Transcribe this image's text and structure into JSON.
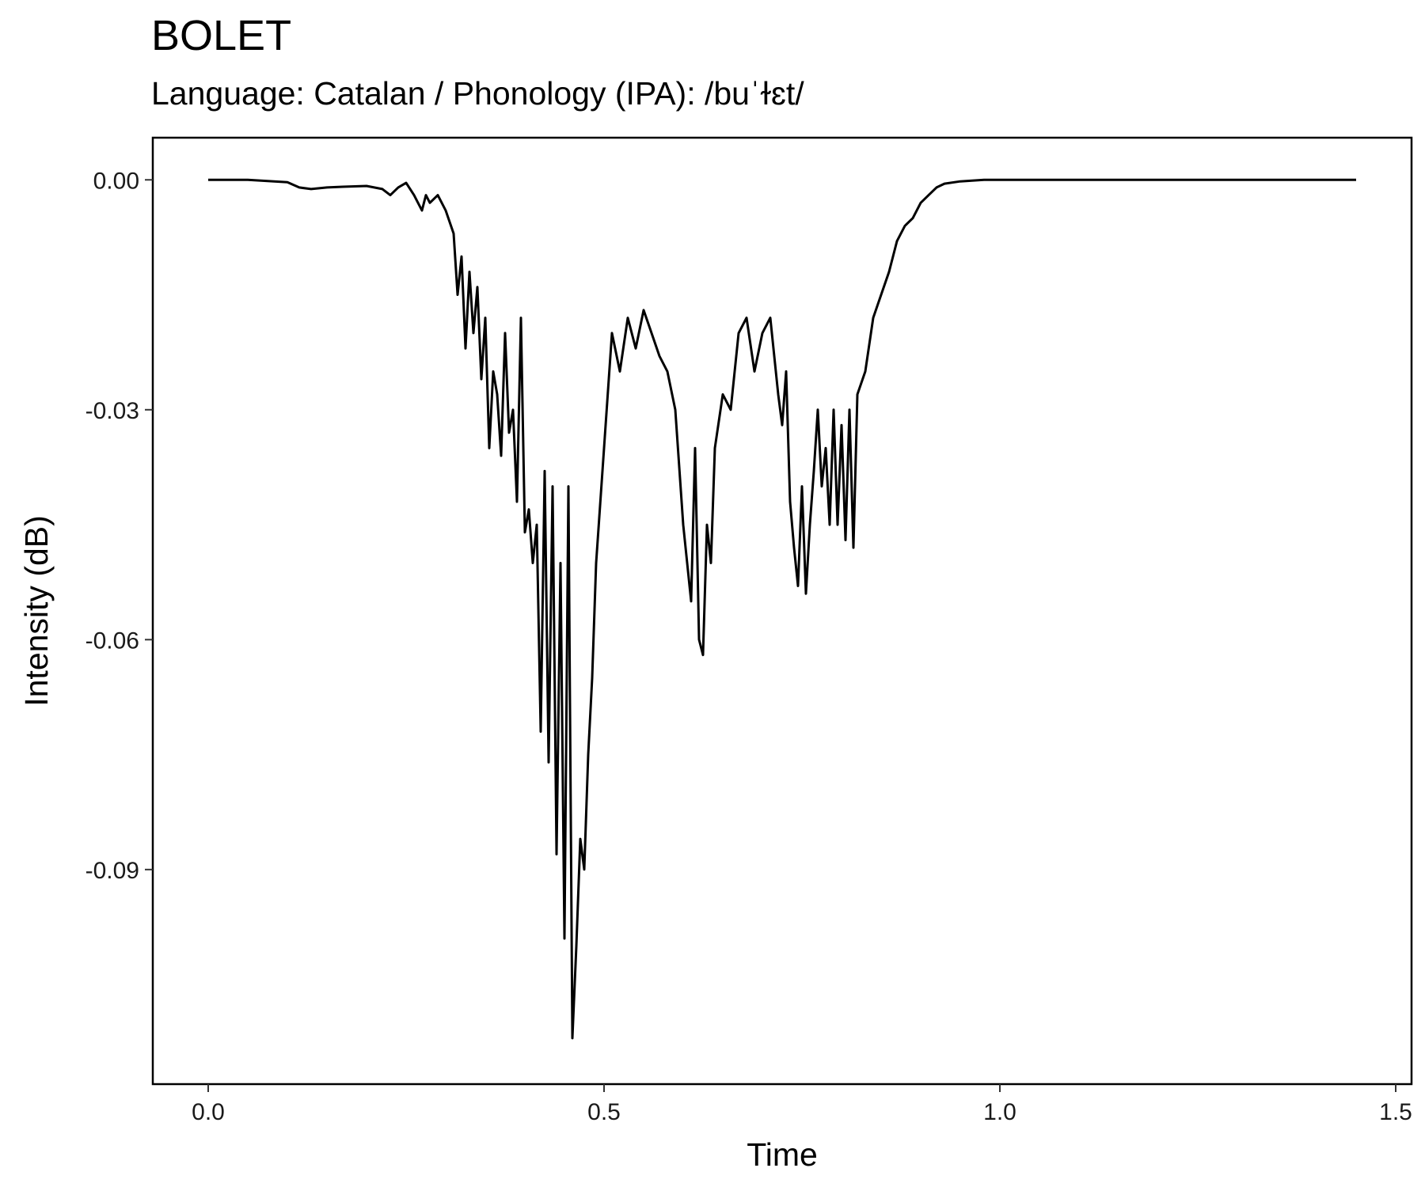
{
  "chart_data": {
    "type": "line",
    "title": "BOLET",
    "subtitle": "Language: Catalan / Phonology (IPA): /buˈɫɛt/",
    "xlabel": "Time",
    "ylabel": "Intensity (dB)",
    "xlim": [
      -0.07,
      1.52
    ],
    "ylim": [
      -0.118,
      0.0055
    ],
    "x_ticks": [
      0.0,
      0.5,
      1.0,
      1.5
    ],
    "x_tick_labels": [
      "0.0",
      "0.5",
      "1.0",
      "1.5"
    ],
    "y_ticks": [
      0.0,
      -0.03,
      -0.06,
      -0.09
    ],
    "y_tick_labels": [
      "0.00",
      "-0.03",
      "-0.06",
      "-0.09"
    ],
    "grid": false,
    "line_color": "#000000",
    "series": [
      {
        "x": [
          0.0,
          0.05,
          0.1,
          0.115,
          0.13,
          0.15,
          0.17,
          0.2,
          0.22,
          0.23,
          0.24,
          0.25,
          0.26,
          0.27,
          0.275,
          0.28,
          0.29,
          0.3,
          0.31,
          0.315,
          0.32,
          0.325,
          0.33,
          0.335,
          0.34,
          0.345,
          0.35,
          0.355,
          0.36,
          0.365,
          0.37,
          0.375,
          0.38,
          0.385,
          0.39,
          0.395,
          0.4,
          0.405,
          0.41,
          0.415,
          0.42,
          0.425,
          0.43,
          0.435,
          0.44,
          0.445,
          0.45,
          0.455,
          0.46,
          0.465,
          0.47,
          0.475,
          0.48,
          0.485,
          0.49,
          0.5,
          0.51,
          0.52,
          0.53,
          0.54,
          0.55,
          0.56,
          0.57,
          0.58,
          0.59,
          0.6,
          0.605,
          0.61,
          0.615,
          0.62,
          0.625,
          0.63,
          0.635,
          0.64,
          0.65,
          0.66,
          0.67,
          0.68,
          0.69,
          0.7,
          0.71,
          0.72,
          0.725,
          0.73,
          0.735,
          0.74,
          0.745,
          0.75,
          0.755,
          0.76,
          0.765,
          0.77,
          0.775,
          0.78,
          0.785,
          0.79,
          0.795,
          0.8,
          0.805,
          0.81,
          0.815,
          0.82,
          0.83,
          0.84,
          0.85,
          0.86,
          0.87,
          0.88,
          0.89,
          0.9,
          0.91,
          0.92,
          0.93,
          0.95,
          0.98,
          1.0,
          1.05,
          1.1,
          1.2,
          1.3,
          1.4,
          1.45
        ],
        "y": [
          0.0,
          0.0,
          -0.0003,
          -0.001,
          -0.0012,
          -0.001,
          -0.0009,
          -0.0008,
          -0.0012,
          -0.002,
          -0.001,
          -0.0004,
          -0.002,
          -0.004,
          -0.002,
          -0.003,
          -0.002,
          -0.004,
          -0.007,
          -0.015,
          -0.01,
          -0.022,
          -0.012,
          -0.02,
          -0.014,
          -0.026,
          -0.018,
          -0.035,
          -0.025,
          -0.028,
          -0.036,
          -0.02,
          -0.033,
          -0.03,
          -0.042,
          -0.018,
          -0.046,
          -0.043,
          -0.05,
          -0.045,
          -0.072,
          -0.038,
          -0.076,
          -0.04,
          -0.088,
          -0.05,
          -0.099,
          -0.04,
          -0.112,
          -0.1,
          -0.086,
          -0.09,
          -0.075,
          -0.065,
          -0.05,
          -0.035,
          -0.02,
          -0.025,
          -0.018,
          -0.022,
          -0.017,
          -0.02,
          -0.023,
          -0.025,
          -0.03,
          -0.045,
          -0.05,
          -0.055,
          -0.035,
          -0.06,
          -0.062,
          -0.045,
          -0.05,
          -0.035,
          -0.028,
          -0.03,
          -0.02,
          -0.018,
          -0.025,
          -0.02,
          -0.018,
          -0.028,
          -0.032,
          -0.025,
          -0.042,
          -0.048,
          -0.053,
          -0.04,
          -0.054,
          -0.045,
          -0.038,
          -0.03,
          -0.04,
          -0.035,
          -0.045,
          -0.03,
          -0.045,
          -0.032,
          -0.047,
          -0.03,
          -0.048,
          -0.028,
          -0.025,
          -0.018,
          -0.015,
          -0.012,
          -0.008,
          -0.006,
          -0.005,
          -0.003,
          -0.002,
          -0.001,
          -0.0005,
          -0.0002,
          0.0,
          0.0,
          0.0,
          0.0,
          0.0,
          0.0,
          0.0,
          0.0
        ]
      }
    ]
  }
}
